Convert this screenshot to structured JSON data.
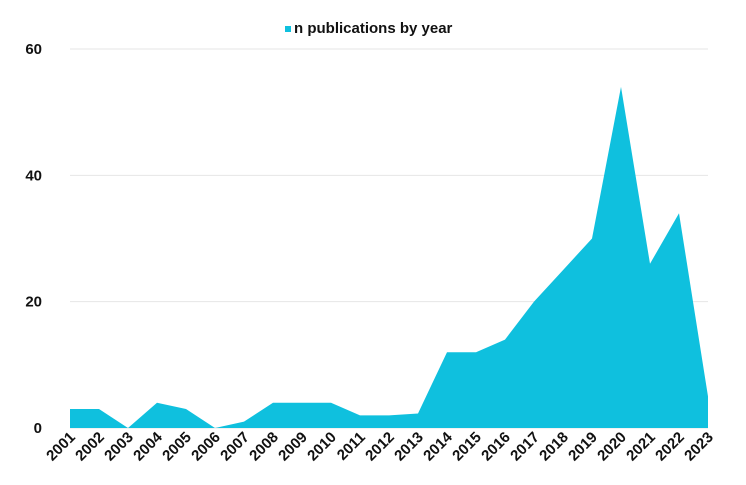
{
  "chart_data": {
    "type": "area",
    "categories": [
      "2001",
      "2002",
      "2003",
      "2004",
      "2005",
      "2006",
      "2007",
      "2008",
      "2009",
      "2010",
      "2011",
      "2012",
      "2013",
      "2014",
      "2015",
      "2016",
      "2017",
      "2018",
      "2019",
      "2020",
      "2021",
      "2022",
      "2023"
    ],
    "series": [
      {
        "name": "n publications by year",
        "values": [
          3,
          3,
          0,
          4,
          3,
          0,
          1,
          4,
          4,
          4,
          2,
          2,
          2.3,
          12,
          12,
          14,
          20,
          25,
          30,
          54,
          26,
          34,
          5
        ],
        "color": "#0fc0de"
      }
    ],
    "y_ticks": [
      0,
      20,
      40,
      60
    ],
    "ylim": [
      0,
      60
    ],
    "grid": true,
    "legend": "top-center",
    "title": "",
    "xlabel": "",
    "ylabel": ""
  }
}
